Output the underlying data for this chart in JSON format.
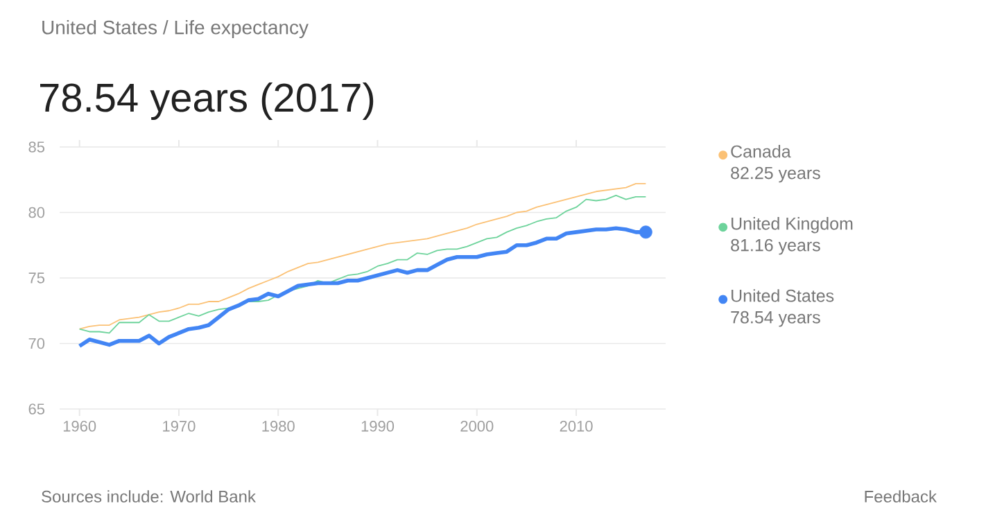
{
  "chart_data": {
    "type": "line",
    "subtitle": "United States / Life expectancy",
    "title": "78.54 years (2017)",
    "x": [
      1960,
      1961,
      1962,
      1963,
      1964,
      1965,
      1966,
      1967,
      1968,
      1969,
      1970,
      1971,
      1972,
      1973,
      1974,
      1975,
      1976,
      1977,
      1978,
      1979,
      1980,
      1981,
      1982,
      1983,
      1984,
      1985,
      1986,
      1987,
      1988,
      1989,
      1990,
      1991,
      1992,
      1993,
      1994,
      1995,
      1996,
      1997,
      1998,
      1999,
      2000,
      2001,
      2002,
      2003,
      2004,
      2005,
      2006,
      2007,
      2008,
      2009,
      2010,
      2011,
      2012,
      2013,
      2014,
      2015,
      2016,
      2017
    ],
    "series": [
      {
        "name": "Canada",
        "color": "#fbc175",
        "values": [
          71.1,
          71.3,
          71.4,
          71.4,
          71.8,
          71.9,
          72.0,
          72.2,
          72.4,
          72.5,
          72.7,
          73.0,
          73.0,
          73.2,
          73.2,
          73.5,
          73.8,
          74.2,
          74.5,
          74.8,
          75.1,
          75.5,
          75.8,
          76.1,
          76.2,
          76.4,
          76.6,
          76.8,
          77.0,
          77.2,
          77.4,
          77.6,
          77.7,
          77.8,
          77.9,
          78.0,
          78.2,
          78.4,
          78.6,
          78.8,
          79.1,
          79.3,
          79.5,
          79.7,
          80.0,
          80.1,
          80.4,
          80.6,
          80.8,
          81.0,
          81.2,
          81.4,
          81.6,
          81.7,
          81.8,
          81.9,
          82.2,
          82.2
        ]
      },
      {
        "name": "United Kingdom",
        "color": "#6dd39b",
        "values": [
          71.1,
          70.9,
          70.9,
          70.8,
          71.6,
          71.6,
          71.6,
          72.2,
          71.7,
          71.7,
          72.0,
          72.3,
          72.1,
          72.4,
          72.6,
          72.7,
          72.8,
          73.2,
          73.2,
          73.3,
          73.7,
          74.0,
          74.2,
          74.4,
          74.8,
          74.6,
          74.9,
          75.2,
          75.3,
          75.5,
          75.9,
          76.1,
          76.4,
          76.4,
          76.9,
          76.8,
          77.1,
          77.2,
          77.2,
          77.4,
          77.7,
          78.0,
          78.1,
          78.5,
          78.8,
          79.0,
          79.3,
          79.5,
          79.6,
          80.1,
          80.4,
          81.0,
          80.9,
          81.0,
          81.3,
          81.0,
          81.2,
          81.2
        ]
      },
      {
        "name": "United States",
        "color": "#4285f4",
        "values": [
          69.8,
          70.3,
          70.1,
          69.9,
          70.2,
          70.2,
          70.2,
          70.6,
          70.0,
          70.5,
          70.8,
          71.1,
          71.2,
          71.4,
          72.0,
          72.6,
          72.9,
          73.3,
          73.4,
          73.8,
          73.6,
          74.0,
          74.4,
          74.5,
          74.6,
          74.6,
          74.6,
          74.8,
          74.8,
          75.0,
          75.2,
          75.4,
          75.6,
          75.4,
          75.6,
          75.6,
          76.0,
          76.4,
          76.6,
          76.6,
          76.6,
          76.8,
          76.9,
          77.0,
          77.5,
          77.5,
          77.7,
          78.0,
          78.0,
          78.4,
          78.5,
          78.6,
          78.7,
          78.7,
          78.8,
          78.7,
          78.5,
          78.5
        ]
      }
    ],
    "xlim": [
      1958,
      2019
    ],
    "ylim": [
      65,
      85
    ],
    "xticks": [
      1960,
      1970,
      1980,
      1990,
      2000,
      2010
    ],
    "yticks": [
      65,
      70,
      75,
      80,
      85
    ],
    "grid": "y",
    "legend": "right",
    "annotations": [
      "82.25 years",
      "81.16 years",
      "78.54 years",
      "Sources include: World Bank",
      "Feedback"
    ]
  }
}
